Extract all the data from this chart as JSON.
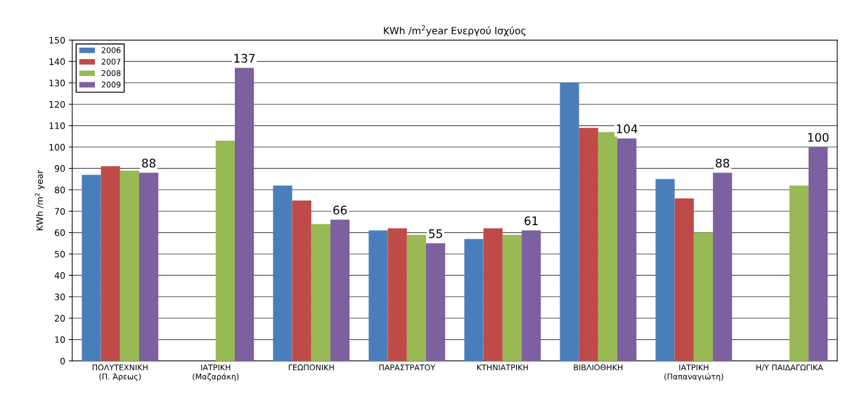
{
  "chart_data": {
    "type": "bar",
    "title": "KWh /m$^{2}$year Ενεργού Ισχύος",
    "ylabel": "KWh /m$^{2}$ year",
    "categories": [
      "ΠΟΛΥΤΕΧΝΙΚΗ\n(Π. Άρεως)",
      "ΙΑΤΡΙΚΗ\n(Μαζαράκη)",
      "ΓΕΩΠΟΝΙΚΗ",
      "ΠΑΡΑΣΤΡΑΤΟΥ",
      "ΚΤΗΝΙΑΤΡΙΚΗ",
      "ΒΙΒΛΙΟΘΗΚΗ",
      "ΙΑΤΡΙΚΗ\n(Παπαναγιώτη)",
      "Η/Υ ΠΑΙΔΑΓΩΓΙΚΑ"
    ],
    "series": [
      {
        "name": "2006",
        "color": "#4a7ebb",
        "values": [
          87,
          null,
          82,
          61,
          57,
          130,
          85,
          null
        ]
      },
      {
        "name": "2007",
        "color": "#be4b48",
        "values": [
          91,
          null,
          75,
          62,
          62,
          109,
          76,
          null
        ]
      },
      {
        "name": "2008",
        "color": "#98b954",
        "values": [
          89,
          103,
          64,
          59,
          59,
          107,
          60,
          82
        ]
      },
      {
        "name": "2009",
        "color": "#7d60a0",
        "values": [
          88,
          137,
          66,
          55,
          61,
          104,
          88,
          100
        ],
        "value_labels": [
          "88",
          "137",
          "66",
          "55",
          "61",
          "104",
          "88",
          "100"
        ]
      }
    ],
    "ylim": [
      0,
      150
    ],
    "yticks": [
      0,
      10,
      20,
      30,
      40,
      50,
      60,
      70,
      80,
      90,
      100,
      110,
      120,
      130,
      140,
      150
    ],
    "grid": "y",
    "legend": "top left"
  }
}
